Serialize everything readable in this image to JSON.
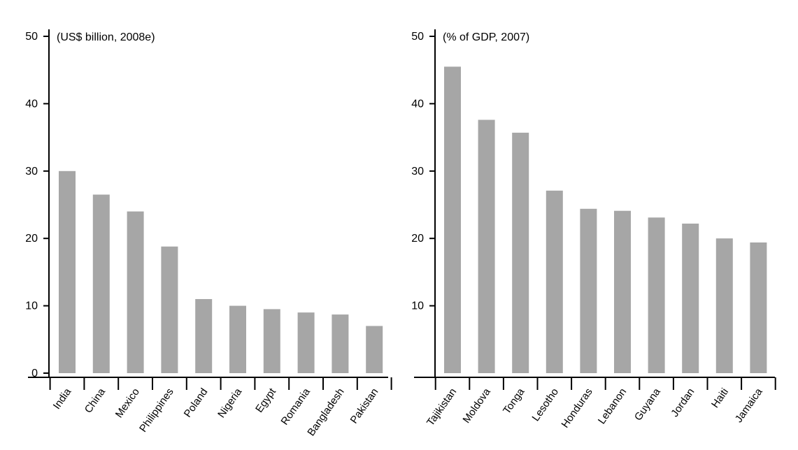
{
  "colors": {
    "bar": "#a6a6a6",
    "axis": "#000000",
    "background": "#ffffff"
  },
  "chart_data": [
    {
      "type": "bar",
      "title": "(US$ billion, 2008e)",
      "xlabel": "",
      "ylabel": "",
      "ylim": [
        0,
        50
      ],
      "yticks": [
        "0",
        "10",
        "20",
        "30",
        "40",
        "50"
      ],
      "grid": false,
      "categories": [
        "India",
        "China",
        "Mexico",
        "Philippines",
        "Poland",
        "Nigeria",
        "Egypt",
        "Romania",
        "Bangladesh",
        "Pakistan"
      ],
      "values": [
        30.0,
        26.5,
        24.0,
        18.8,
        11.0,
        10.0,
        9.5,
        9.0,
        8.7,
        7.0
      ]
    },
    {
      "type": "bar",
      "title": "(% of GDP, 2007)",
      "xlabel": "",
      "ylabel": "",
      "ylim": [
        0,
        50
      ],
      "yticks": [
        "10",
        "20",
        "30",
        "40",
        "50"
      ],
      "grid": false,
      "categories": [
        "Tajikistan",
        "Moldova",
        "Tonga",
        "Lesotho",
        "Honduras",
        "Lebanon",
        "Guyana",
        "Jordan",
        "Haiti",
        "Jamaica"
      ],
      "values": [
        45.5,
        37.6,
        35.7,
        27.1,
        24.4,
        24.1,
        23.1,
        22.2,
        20.0,
        19.4
      ]
    }
  ]
}
